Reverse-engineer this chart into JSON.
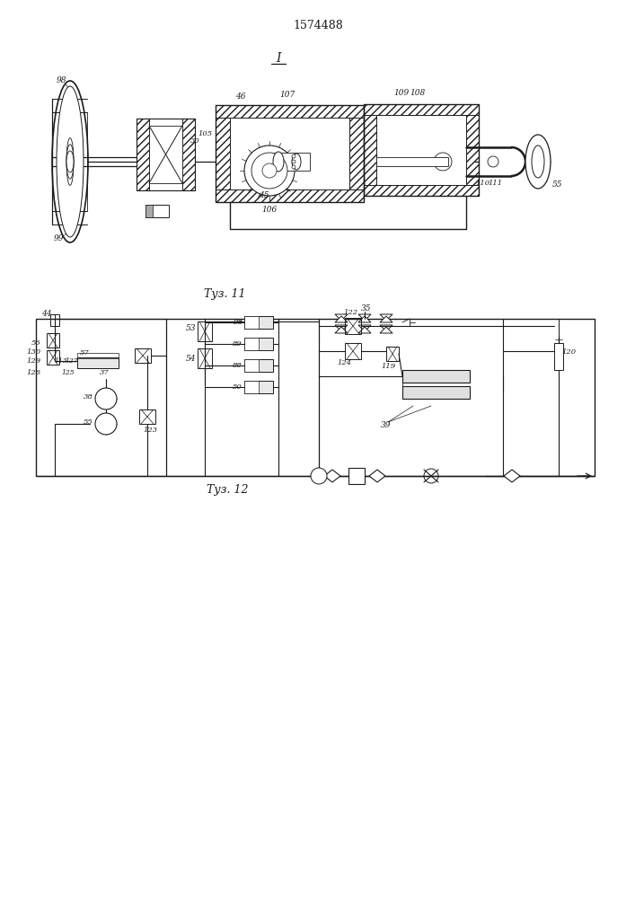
{
  "title": "1574488",
  "fig11_caption": "Τуз. 11",
  "fig12_caption": "Τуз. 12",
  "fig_label_I": "I",
  "background_color": "#ffffff",
  "line_color": "#1a1a1a",
  "text_color": "#1a1a1a"
}
